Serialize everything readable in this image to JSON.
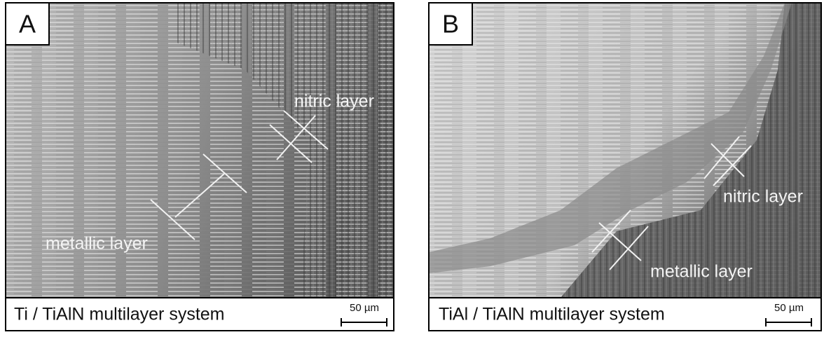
{
  "panels": [
    {
      "label": "A",
      "caption": "Ti / TiAlN multilayer system",
      "scale_bar": "50 µm",
      "annotations": [
        "nitric layer",
        "metallic layer"
      ]
    },
    {
      "label": "B",
      "caption": "TiAl / TiAlN multilayer system",
      "scale_bar": "50 µm",
      "annotations": [
        "nitric layer",
        "metallic layer"
      ]
    }
  ]
}
